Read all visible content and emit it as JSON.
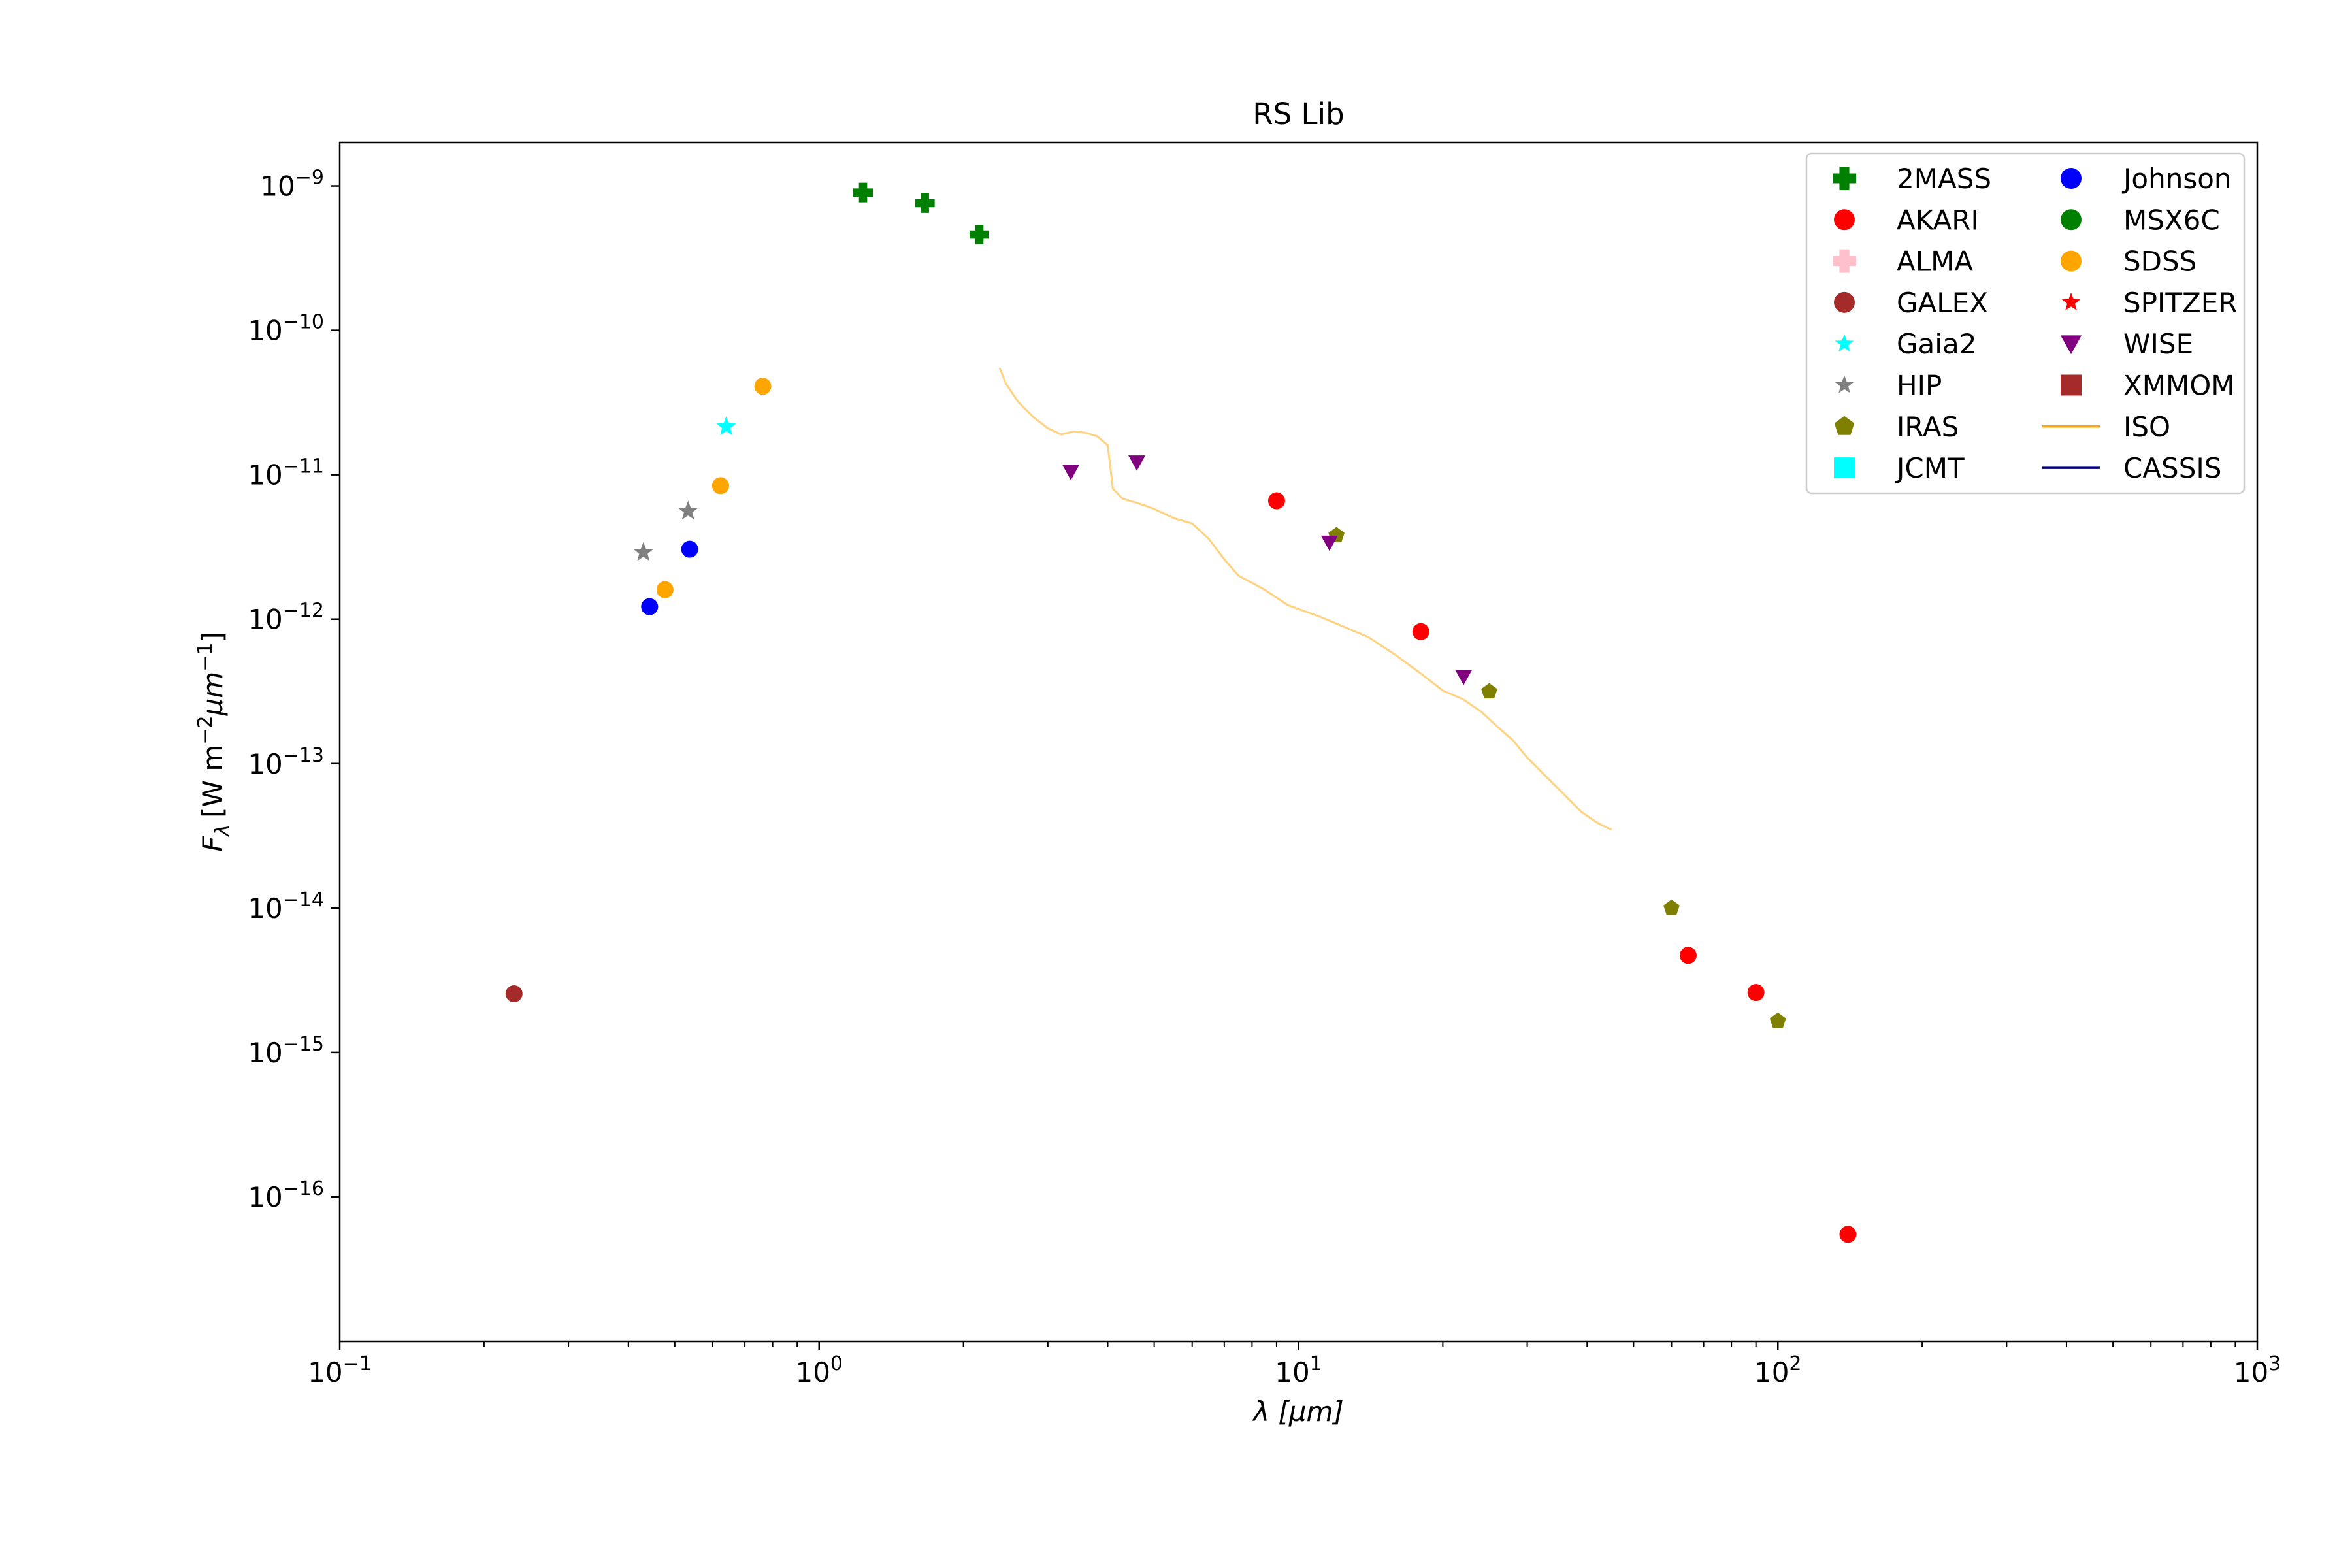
{
  "chart_data": {
    "type": "scatter",
    "title": "RS Lib",
    "xlabel": "λ [μm]",
    "ylabel": "F",
    "ylabel_parts": {
      "main": "F",
      "sub": "λ",
      "unit_prefix": "[W m",
      "unit_exp1": "−2",
      "unit_mid": "μm",
      "unit_exp2": "−1",
      "unit_suffix": "]"
    },
    "xscale": "log",
    "yscale": "log",
    "xlim": [
      0.1,
      1000
    ],
    "ylim": [
      1e-17,
      2e-09
    ],
    "x_ticks": [
      {
        "value": 0.1,
        "base": "10",
        "exp": "−1"
      },
      {
        "value": 1,
        "base": "10",
        "exp": "0"
      },
      {
        "value": 10,
        "base": "10",
        "exp": "1"
      },
      {
        "value": 100,
        "base": "10",
        "exp": "2"
      },
      {
        "value": 1000,
        "base": "10",
        "exp": "3"
      }
    ],
    "y_ticks": [
      {
        "value": 1e-16,
        "base": "10",
        "exp": "−16"
      },
      {
        "value": 1e-15,
        "base": "10",
        "exp": "−15"
      },
      {
        "value": 1e-14,
        "base": "10",
        "exp": "−14"
      },
      {
        "value": 1e-13,
        "base": "10",
        "exp": "−13"
      },
      {
        "value": 1e-12,
        "base": "10",
        "exp": "−12"
      },
      {
        "value": 1e-11,
        "base": "10",
        "exp": "−11"
      },
      {
        "value": 1e-10,
        "base": "10",
        "exp": "−10"
      },
      {
        "value": 1e-09,
        "base": "10",
        "exp": "−9"
      }
    ],
    "grid": false,
    "legend_position": "top-right",
    "legend_columns": 2,
    "series": [
      {
        "name": "2MASS",
        "marker": "plus",
        "color": "#008000",
        "points": [
          [
            1.235,
            9e-10
          ],
          [
            1.662,
            7.6e-10
          ],
          [
            2.159,
            4.6e-10
          ]
        ]
      },
      {
        "name": "AKARI",
        "marker": "circle",
        "color": "#ff0000",
        "points": [
          [
            9.0,
            6.6e-12
          ],
          [
            18.0,
            8.2e-13
          ],
          [
            65.0,
            4.7e-15
          ],
          [
            90.0,
            2.6e-15
          ],
          [
            140.0,
            5.5e-17
          ]
        ]
      },
      {
        "name": "ALMA",
        "marker": "plus",
        "color": "#ffc0cb",
        "points": []
      },
      {
        "name": "GALEX",
        "marker": "circle",
        "color": "#a52a2a",
        "points": [
          [
            0.231,
            2.55e-15
          ]
        ]
      },
      {
        "name": "Gaia2",
        "marker": "star",
        "color": "#00ffff",
        "points": [
          [
            0.64,
            2.15e-11
          ]
        ]
      },
      {
        "name": "HIP",
        "marker": "star",
        "color": "#808080",
        "points": [
          [
            0.43,
            2.9e-12
          ],
          [
            0.533,
            5.6e-12
          ]
        ]
      },
      {
        "name": "IRAS",
        "marker": "pentagon",
        "color": "#808000",
        "points": [
          [
            12.0,
            3.8e-12
          ],
          [
            25.0,
            3.15e-13
          ],
          [
            60.0,
            1e-14
          ],
          [
            100.0,
            1.65e-15
          ]
        ]
      },
      {
        "name": "JCMT",
        "marker": "square",
        "color": "#00ffff",
        "points": []
      },
      {
        "name": "Johnson",
        "marker": "circle",
        "color": "#0000ff",
        "points": [
          [
            0.443,
            1.22e-12
          ],
          [
            0.537,
            3.05e-12
          ]
        ]
      },
      {
        "name": "MSX6C",
        "marker": "circle",
        "color": "#008000",
        "points": []
      },
      {
        "name": "SDSS",
        "marker": "circle",
        "color": "#ffa500",
        "points": [
          [
            0.477,
            1.6e-12
          ],
          [
            0.623,
            8.4e-12
          ],
          [
            0.763,
            4.1e-11
          ]
        ]
      },
      {
        "name": "SPITZER",
        "marker": "star",
        "color": "#ff0000",
        "points": []
      },
      {
        "name": "WISE",
        "marker": "triangle-down",
        "color": "#800080",
        "points": [
          [
            3.35,
            1.05e-11
          ],
          [
            4.6,
            1.22e-11
          ],
          [
            11.6,
            3.4e-12
          ],
          [
            22.1,
            4e-13
          ]
        ]
      },
      {
        "name": "XMMOM",
        "marker": "square",
        "color": "#a52a2a",
        "points": []
      },
      {
        "name": "ISO",
        "marker": "line",
        "color": "#ffa500",
        "alpha": 0.5,
        "points": [
          [
            2.38,
            5.5e-11
          ],
          [
            2.45,
            4.3e-11
          ],
          [
            2.6,
            3.2e-11
          ],
          [
            2.8,
            2.5e-11
          ],
          [
            3.0,
            2.1e-11
          ],
          [
            3.2,
            1.9e-11
          ],
          [
            3.4,
            2e-11
          ],
          [
            3.6,
            1.95e-11
          ],
          [
            3.8,
            1.85e-11
          ],
          [
            4.0,
            1.6e-11
          ],
          [
            4.1,
            8e-12
          ],
          [
            4.3,
            6.8e-12
          ],
          [
            4.6,
            6.4e-12
          ],
          [
            5.0,
            5.8e-12
          ],
          [
            5.5,
            5e-12
          ],
          [
            6.0,
            4.6e-12
          ],
          [
            6.5,
            3.6e-12
          ],
          [
            7.0,
            2.6e-12
          ],
          [
            7.5,
            2e-12
          ],
          [
            8.5,
            1.6e-12
          ],
          [
            9.5,
            1.25e-12
          ],
          [
            11.0,
            1.05e-12
          ],
          [
            12.5,
            8.8e-13
          ],
          [
            14.0,
            7.5e-13
          ],
          [
            16.0,
            5.6e-13
          ],
          [
            18.0,
            4.2e-13
          ],
          [
            20.0,
            3.2e-13
          ],
          [
            22.0,
            2.8e-13
          ],
          [
            24.0,
            2.3e-13
          ],
          [
            26.0,
            1.8e-13
          ],
          [
            28.0,
            1.45e-13
          ],
          [
            30.0,
            1.1e-13
          ],
          [
            33.0,
            8e-14
          ],
          [
            36.0,
            6e-14
          ],
          [
            39.0,
            4.6e-14
          ],
          [
            42.0,
            3.9e-14
          ],
          [
            44.0,
            3.6e-14
          ],
          [
            45.0,
            3.5e-14
          ]
        ]
      },
      {
        "name": "CASSIS",
        "marker": "line",
        "color": "#00008b",
        "points": []
      }
    ]
  }
}
